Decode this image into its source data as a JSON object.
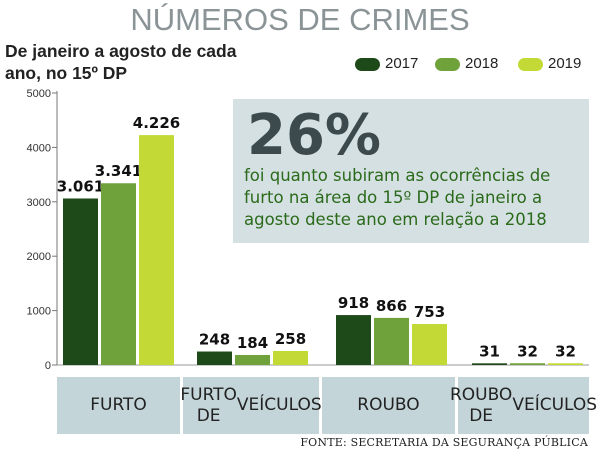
{
  "title": "NÚMEROS DE CRIMES",
  "subtitle": "De janeiro a agosto de cada ano, no 15º DP",
  "callout": {
    "big": "26%",
    "text": "foi quanto subiram as ocorrências de furto na área do 15º DP de janeiro a agosto deste ano em relação a 2018"
  },
  "source": "FONTE: SECRETARIA DA SEGURANÇA PÚBLICA",
  "colors": {
    "2017": "#1d4a18",
    "2018": "#6fa23a",
    "2019": "#c3da36"
  },
  "chart_data": {
    "type": "bar",
    "title": "NÚMEROS DE CRIMES",
    "categories": [
      "FURTO",
      "FURTO DE VEÍCULOS",
      "ROUBO",
      "ROUBO DE VEÍCULOS"
    ],
    "series": [
      {
        "name": "2017",
        "values": [
          3061,
          248,
          918,
          31
        ],
        "labels": [
          "3.061",
          "248",
          "918",
          "31"
        ]
      },
      {
        "name": "2018",
        "values": [
          3341,
          184,
          866,
          32
        ],
        "labels": [
          "3.341",
          "184",
          "866",
          "32"
        ]
      },
      {
        "name": "2019",
        "values": [
          4226,
          258,
          753,
          32
        ],
        "labels": [
          "4.226",
          "258",
          "753",
          "32"
        ]
      }
    ],
    "ylim": [
      0,
      5000
    ],
    "yticks": [
      0,
      1000,
      2000,
      3000,
      4000,
      5000
    ],
    "grid": false,
    "legend": "top-right"
  }
}
